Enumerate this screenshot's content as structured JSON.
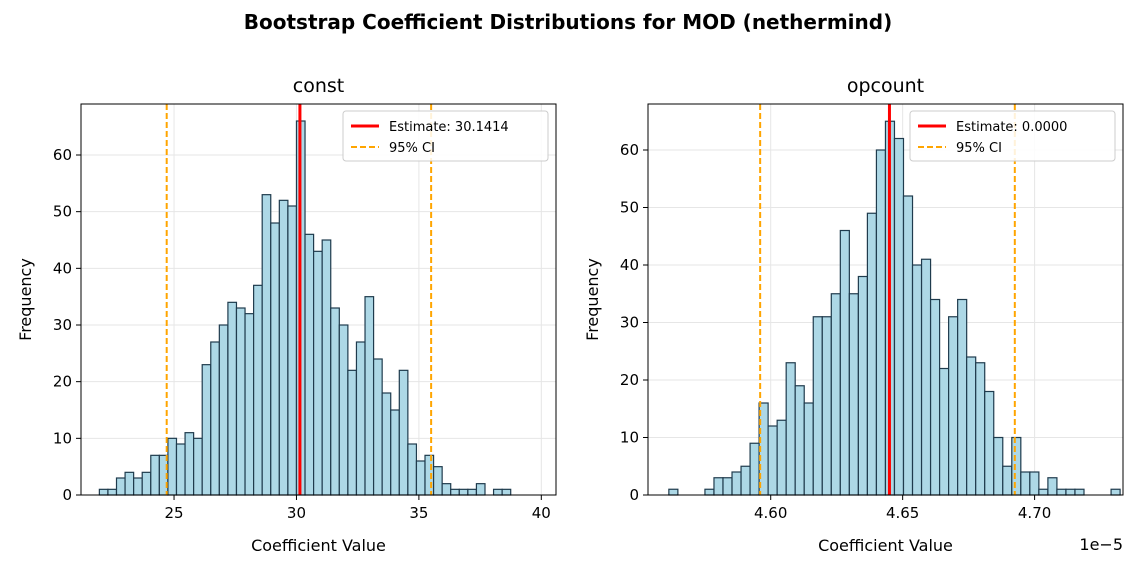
{
  "figure": {
    "suptitle": "Bootstrap Coefficient Distributions for MOD (nethermind)",
    "colors": {
      "bar_fill": "#add8e6",
      "bar_edge": "#1f3b4d",
      "estimate": "#ff0000",
      "ci": "#ffa500",
      "grid": "#e6e6e6"
    }
  },
  "chart_data": [
    {
      "type": "bar",
      "subtype": "histogram",
      "title": "const",
      "xlabel": "Coefficient Value",
      "ylabel": "Frequency",
      "xlim": [
        21.2,
        40.6
      ],
      "ylim": [
        0,
        69
      ],
      "xticks": [
        25,
        30,
        35,
        40
      ],
      "xtick_labels": [
        "25",
        "30",
        "35",
        "40"
      ],
      "yticks": [
        0,
        10,
        20,
        30,
        40,
        50,
        60
      ],
      "ytick_labels": [
        "0",
        "10",
        "20",
        "30",
        "40",
        "50",
        "60"
      ],
      "bins": {
        "start": 21.95,
        "width": 0.35,
        "counts": [
          1,
          1,
          3,
          4,
          3,
          4,
          7,
          7,
          10,
          9,
          11,
          10,
          23,
          27,
          30,
          34,
          33,
          32,
          37,
          53,
          48,
          52,
          51,
          66,
          46,
          43,
          45,
          33,
          30,
          22,
          27,
          35,
          24,
          18,
          15,
          22,
          9,
          6,
          7,
          5,
          2,
          1,
          1,
          1,
          2,
          0,
          1,
          1
        ]
      },
      "estimate": 30.1414,
      "ci": [
        24.7,
        35.5
      ],
      "legend": {
        "location": "upper right",
        "estimate_label": "Estimate: 30.1414",
        "ci_label": "95% CI"
      },
      "offset_text": ""
    },
    {
      "type": "bar",
      "subtype": "histogram",
      "title": "opcount",
      "xlabel": "Coefficient Value",
      "ylabel": "Frequency",
      "xlim": [
        4.5535,
        4.7335
      ],
      "ylim": [
        0,
        68
      ],
      "xticks": [
        4.6,
        4.65,
        4.7
      ],
      "xtick_labels": [
        "4.60",
        "4.65",
        "4.70"
      ],
      "yticks": [
        0,
        10,
        20,
        30,
        40,
        50,
        60
      ],
      "ytick_labels": [
        "0",
        "10",
        "20",
        "30",
        "40",
        "50",
        "60"
      ],
      "bins": {
        "start": 4.5614,
        "width": 0.00342,
        "counts": [
          1,
          0,
          0,
          0,
          1,
          3,
          3,
          4,
          5,
          9,
          16,
          12,
          13,
          23,
          19,
          16,
          31,
          31,
          35,
          46,
          35,
          38,
          49,
          60,
          65,
          62,
          52,
          40,
          41,
          34,
          22,
          31,
          34,
          24,
          23,
          18,
          10,
          5,
          10,
          4,
          4,
          1,
          3,
          1,
          1,
          1,
          0,
          0,
          0,
          1
        ]
      },
      "estimate": 4.645,
      "ci": [
        4.596,
        4.6925
      ],
      "legend": {
        "location": "upper right",
        "estimate_label": "Estimate: 0.0000",
        "ci_label": "95% CI"
      },
      "offset_text": "1e−5"
    }
  ]
}
